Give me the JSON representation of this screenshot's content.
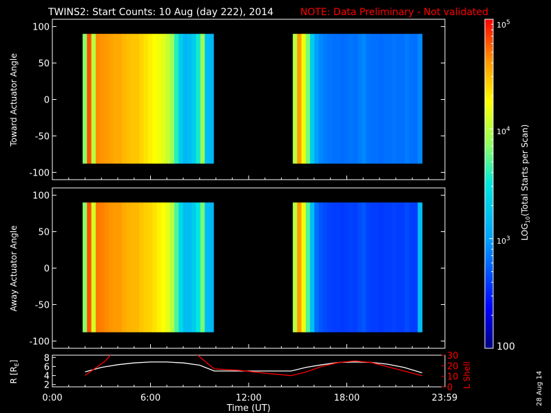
{
  "header": {
    "title": "TWINS2: Start Counts: 10 Aug (day 222), 2014",
    "note": "NOTE: Data Preliminary - Not validated",
    "note_color": "#ff0000"
  },
  "footer": {
    "date_stamp": "28 Aug 14"
  },
  "colorbar": {
    "label_pre": "LOG",
    "label_sub": "10",
    "label_post": "(Total Starts per Scan)",
    "tick_top_base": "10",
    "tick_top_exp": "5",
    "tick_4_base": "10",
    "tick_4_exp": "4",
    "tick_3_base": "10",
    "tick_3_exp": "3",
    "tick_bottom": "100",
    "range": [
      2,
      5
    ],
    "scale": "log"
  },
  "chart_data": [
    {
      "type": "heatmap",
      "ylabel": "Toward Actuator Angle",
      "xlim": [
        0,
        24
      ],
      "ylim": [
        -110,
        110
      ],
      "y_ticks": [
        "100",
        "50",
        "0",
        "-50",
        "-100"
      ],
      "y_tick_values": [
        100,
        50,
        0,
        -50,
        -100
      ],
      "data_y_range": [
        -88,
        90
      ],
      "segments": [
        {
          "x_start": 1.85,
          "x_end": 9.85,
          "log_counts": [
            3.85,
            4.8,
            4.0,
            4.65,
            4.62,
            4.6,
            4.58,
            4.55,
            4.55,
            4.5,
            4.48,
            4.45,
            4.45,
            4.4,
            4.35,
            4.3,
            4.25,
            4.2,
            4.15,
            4.05,
            3.9,
            3.6,
            3.3,
            3.15,
            3.2,
            3.3,
            3.55,
            3.9,
            3.2,
            3.15
          ]
        },
        {
          "x_start": 14.7,
          "x_end": 22.6,
          "log_counts": [
            4.0,
            4.6,
            4.2,
            3.8,
            3.3,
            3.0,
            2.9,
            2.85,
            2.82,
            2.8,
            2.8,
            2.78,
            2.8,
            2.82,
            2.8,
            2.85,
            2.9,
            2.82,
            2.8,
            2.8,
            2.78,
            2.8,
            2.8,
            2.82,
            2.8,
            2.8,
            2.85,
            2.8,
            2.8,
            2.9
          ]
        }
      ]
    },
    {
      "type": "heatmap",
      "ylabel": "Away Actuator Angle",
      "xlim": [
        0,
        24
      ],
      "ylim": [
        -110,
        110
      ],
      "y_ticks": [
        "100",
        "50",
        "0",
        "-50",
        "-100"
      ],
      "y_tick_values": [
        100,
        50,
        0,
        -50,
        -100
      ],
      "data_y_range": [
        -88,
        90
      ],
      "segments": [
        {
          "x_start": 1.85,
          "x_end": 9.85,
          "log_counts": [
            3.85,
            4.8,
            4.1,
            4.7,
            4.68,
            4.65,
            4.62,
            4.6,
            4.6,
            4.55,
            4.52,
            4.5,
            4.5,
            4.45,
            4.42,
            4.4,
            4.35,
            4.3,
            4.25,
            4.15,
            4.0,
            3.7,
            3.4,
            3.2,
            3.2,
            3.3,
            3.5,
            3.8,
            3.2,
            3.15
          ]
        },
        {
          "x_start": 14.7,
          "x_end": 22.6,
          "log_counts": [
            4.0,
            4.6,
            4.2,
            3.7,
            3.2,
            2.8,
            2.7,
            2.65,
            2.62,
            2.6,
            2.6,
            2.58,
            2.6,
            2.62,
            2.6,
            2.65,
            2.7,
            2.62,
            2.6,
            2.6,
            2.58,
            2.6,
            2.6,
            2.62,
            2.6,
            2.6,
            2.65,
            2.6,
            2.6,
            3.2
          ]
        }
      ]
    },
    {
      "type": "line",
      "xlabel": "Time (UT)",
      "x_ticks": [
        "0:00",
        "6:00",
        "12:00",
        "18:00",
        "23:59"
      ],
      "x_tick_values": [
        0,
        6,
        12,
        18,
        23.98
      ],
      "xlim": [
        0,
        24
      ],
      "ylabel_left_pre": "R [R",
      "ylabel_left_sub": "E",
      "ylabel_left_post": "]",
      "ylim_left": [
        1.5,
        8.5
      ],
      "y_ticks_left": [
        "8",
        "6",
        "4",
        "2"
      ],
      "y_tick_values_left": [
        8,
        6,
        4,
        2
      ],
      "ylabel_right": "L Shell",
      "ylim_right": [
        0,
        30
      ],
      "y_ticks_right": [
        "30",
        "20",
        "10",
        "0"
      ],
      "y_tick_values_right": [
        30,
        20,
        10,
        0
      ],
      "series": [
        {
          "axis": "left",
          "color": "#ffffff",
          "x": [
            2.0,
            3.0,
            4.0,
            5.0,
            6.0,
            7.0,
            8.0,
            9.0,
            9.9,
            11.0,
            12.0,
            13.0,
            14.6,
            15.5,
            16.5,
            17.5,
            18.5,
            19.5,
            20.5,
            21.5,
            22.6
          ],
          "y": [
            4.8,
            5.8,
            6.4,
            6.8,
            7.0,
            7.0,
            6.8,
            6.3,
            5.0,
            5.0,
            5.0,
            5.0,
            5.0,
            5.8,
            6.4,
            6.9,
            7.0,
            6.9,
            6.5,
            5.8,
            4.6
          ]
        },
        {
          "axis": "right",
          "color": "#ff0000",
          "x": [
            2.0,
            3.2,
            3.6,
            8.8,
            9.9,
            11.5,
            13.0,
            14.6,
            15.5,
            16.5,
            17.5,
            18.5,
            19.5,
            20.5,
            21.5,
            22.6
          ],
          "y": [
            10.8,
            24.0,
            31.0,
            31.0,
            17.0,
            15.5,
            13.0,
            10.6,
            14.0,
            19.5,
            23.0,
            24.5,
            23.0,
            19.0,
            15.0,
            10.5
          ]
        }
      ]
    }
  ]
}
